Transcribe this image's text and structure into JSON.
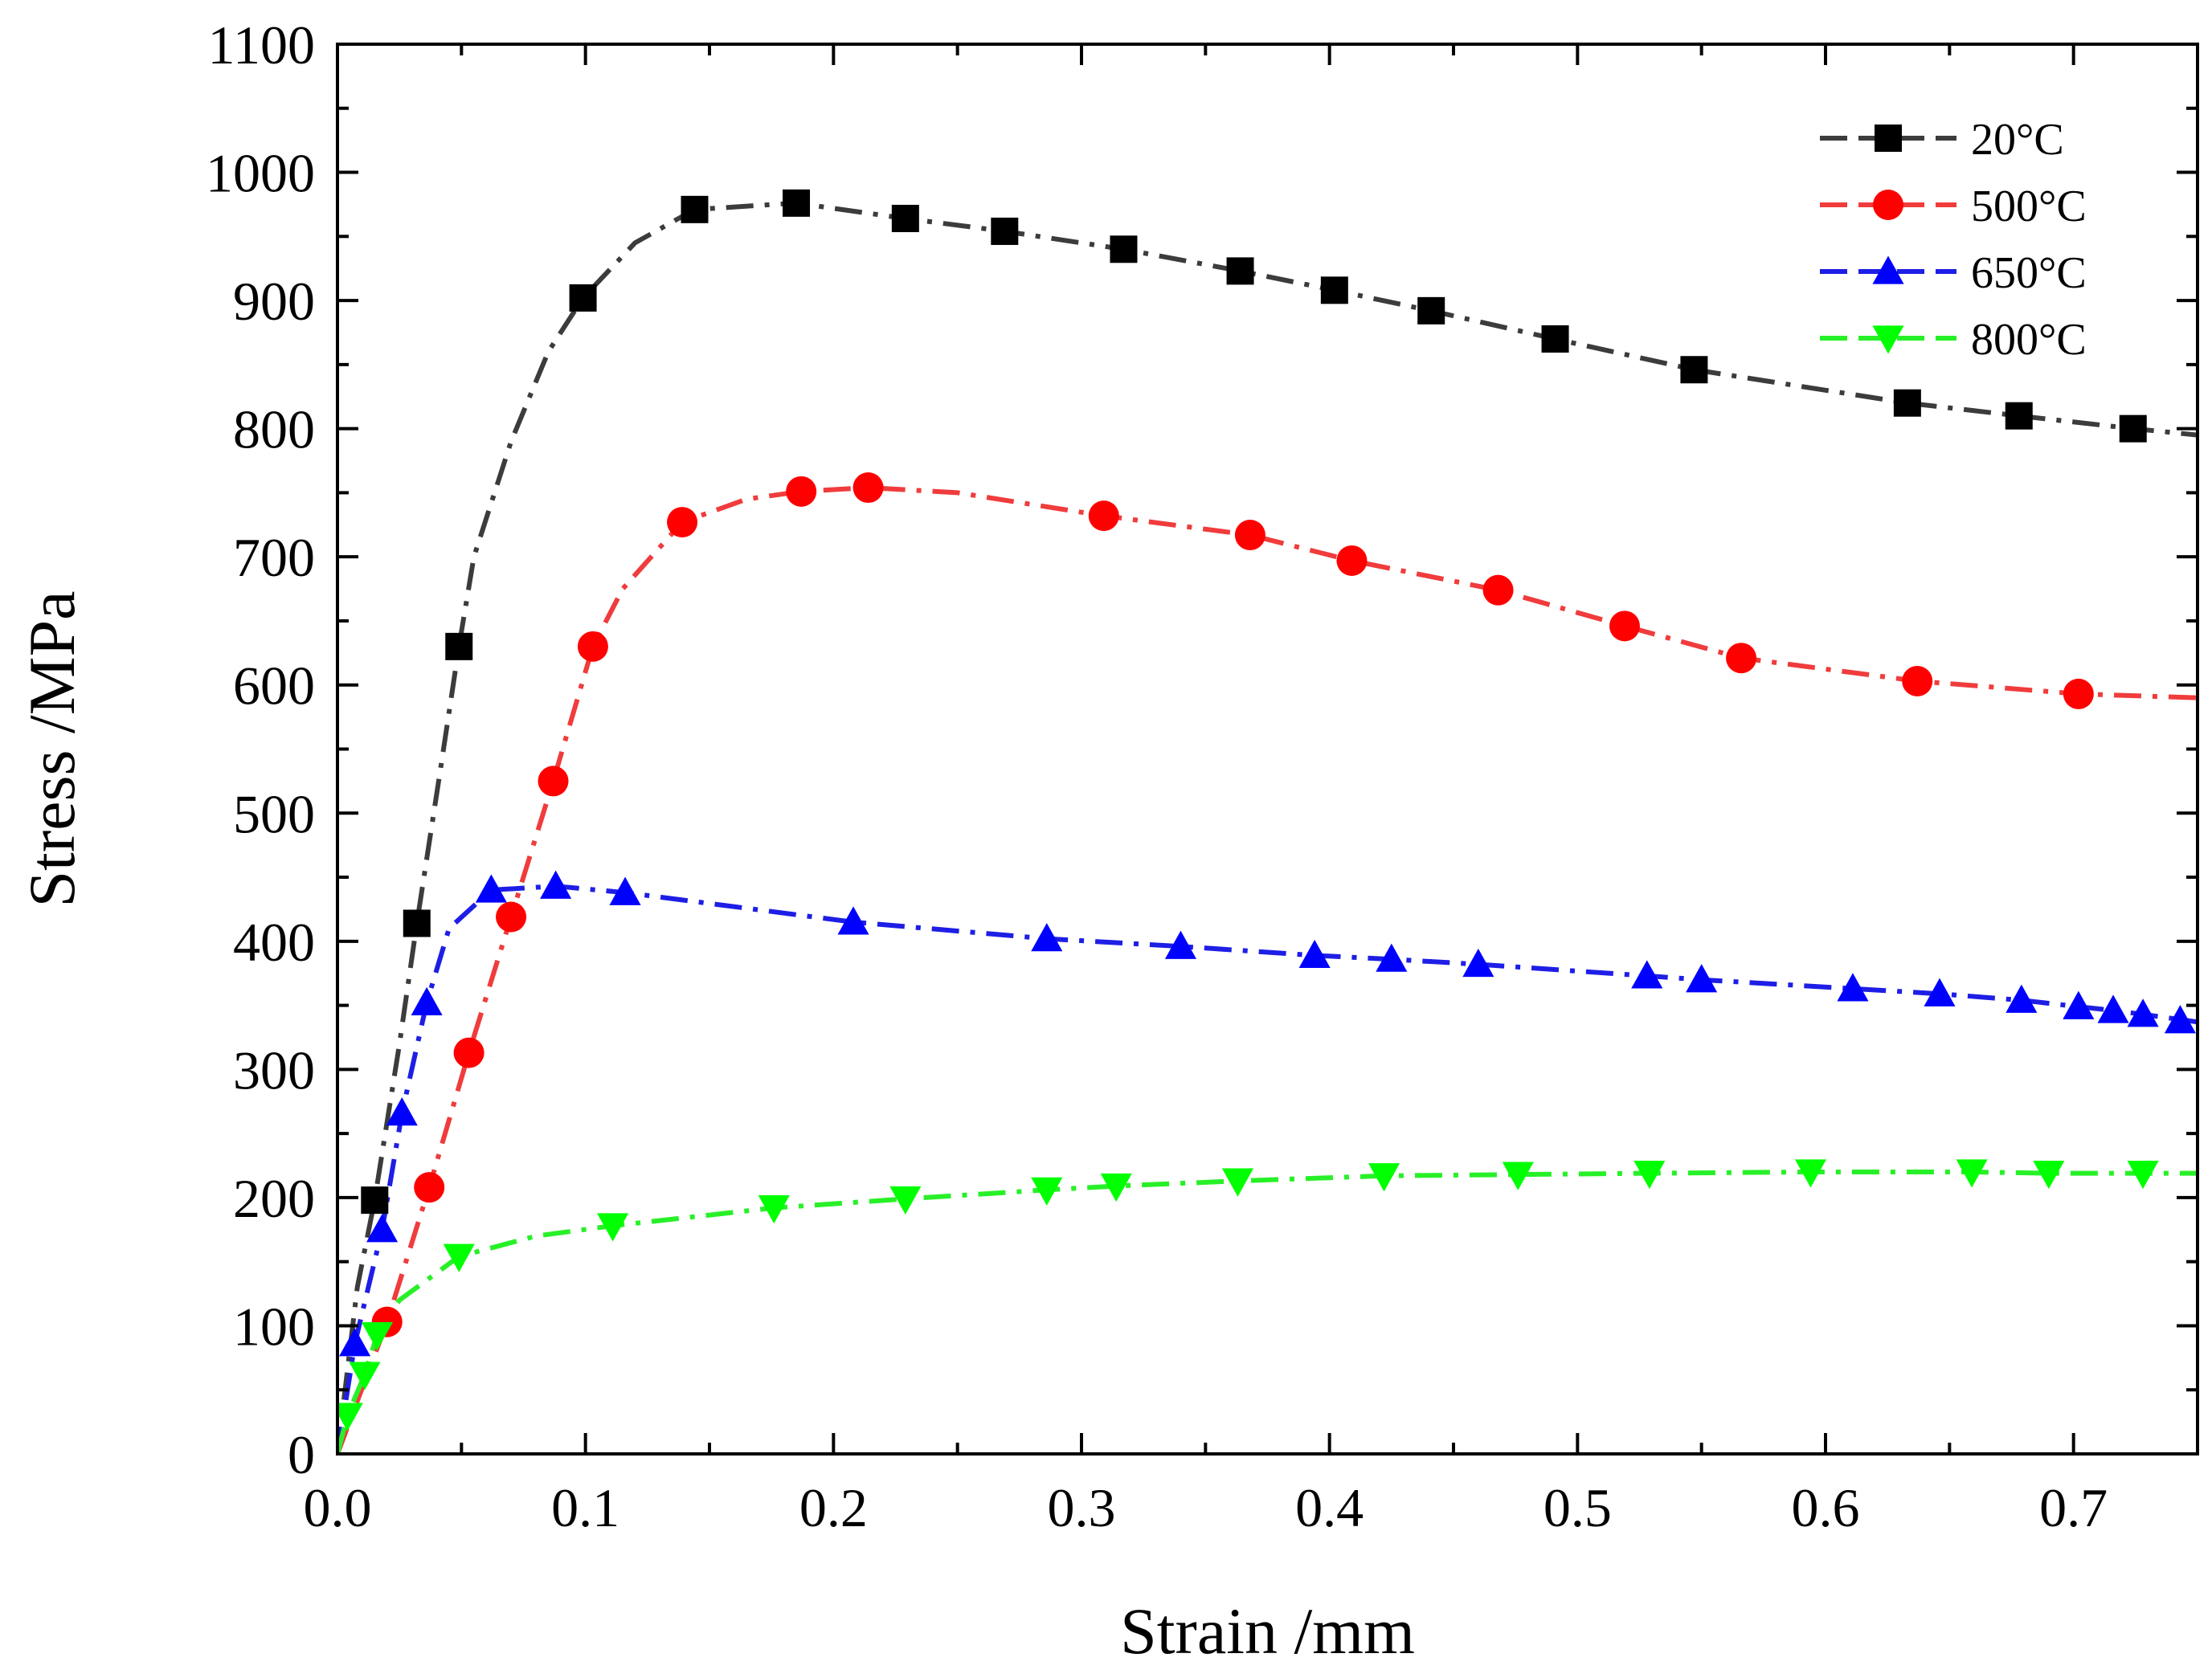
{
  "chart_data": {
    "type": "line",
    "title": "",
    "xlabel": "Strain /mm",
    "ylabel": "Stress /MPa",
    "xlim": [
      0,
      0.75
    ],
    "ylim": [
      0,
      1100
    ],
    "x_ticks": [
      0.0,
      0.1,
      0.2,
      0.3,
      0.4,
      0.5,
      0.6,
      0.7
    ],
    "x_tick_labels": [
      "0.0",
      "0.1",
      "0.2",
      "0.3",
      "0.4",
      "0.5",
      "0.6",
      "0.7"
    ],
    "y_ticks": [
      0,
      100,
      200,
      300,
      400,
      500,
      600,
      700,
      800,
      900,
      1000,
      1100
    ],
    "y_tick_labels": [
      "0",
      "100",
      "200",
      "300",
      "400",
      "500",
      "600",
      "700",
      "800",
      "900",
      "1000",
      "1100"
    ],
    "grid": false,
    "legend_position": "top-right",
    "series": [
      {
        "name": "20°C",
        "color": "#3c3c3c",
        "marker": "square",
        "points": [
          [
            0.015,
            198
          ],
          [
            0.032,
            414
          ],
          [
            0.049,
            630
          ],
          [
            0.099,
            902
          ],
          [
            0.144,
            971
          ],
          [
            0.185,
            976
          ],
          [
            0.229,
            964
          ],
          [
            0.269,
            954
          ],
          [
            0.317,
            940
          ],
          [
            0.364,
            923
          ],
          [
            0.402,
            908
          ],
          [
            0.441,
            892
          ],
          [
            0.491,
            870
          ],
          [
            0.547,
            846
          ],
          [
            0.633,
            820
          ],
          [
            0.678,
            810
          ],
          [
            0.724,
            800
          ]
        ],
        "curve": [
          [
            0.0,
            0
          ],
          [
            0.008,
            130
          ],
          [
            0.015,
            198
          ],
          [
            0.025,
            320
          ],
          [
            0.032,
            414
          ],
          [
            0.042,
            540
          ],
          [
            0.049,
            630
          ],
          [
            0.055,
            700
          ],
          [
            0.07,
            790
          ],
          [
            0.085,
            860
          ],
          [
            0.099,
            902
          ],
          [
            0.12,
            945
          ],
          [
            0.144,
            971
          ],
          [
            0.185,
            976
          ],
          [
            0.229,
            964
          ],
          [
            0.269,
            954
          ],
          [
            0.317,
            940
          ],
          [
            0.364,
            923
          ],
          [
            0.402,
            908
          ],
          [
            0.441,
            892
          ],
          [
            0.491,
            870
          ],
          [
            0.547,
            846
          ],
          [
            0.6,
            830
          ],
          [
            0.633,
            820
          ],
          [
            0.678,
            810
          ],
          [
            0.724,
            800
          ],
          [
            0.75,
            795
          ]
        ]
      },
      {
        "name": "500°C",
        "color": "#f03c3c",
        "marker": "circle",
        "points": [
          [
            0.02,
            103
          ],
          [
            0.037,
            208
          ],
          [
            0.053,
            313
          ],
          [
            0.07,
            419
          ],
          [
            0.087,
            525
          ],
          [
            0.103,
            630
          ],
          [
            0.139,
            727
          ],
          [
            0.187,
            751
          ],
          [
            0.214,
            754
          ],
          [
            0.309,
            732
          ],
          [
            0.368,
            717
          ],
          [
            0.409,
            697
          ],
          [
            0.468,
            674
          ],
          [
            0.519,
            646
          ],
          [
            0.566,
            621
          ],
          [
            0.637,
            603
          ],
          [
            0.702,
            593
          ]
        ],
        "curve": [
          [
            0.0,
            0
          ],
          [
            0.02,
            103
          ],
          [
            0.037,
            208
          ],
          [
            0.053,
            313
          ],
          [
            0.07,
            419
          ],
          [
            0.087,
            525
          ],
          [
            0.103,
            630
          ],
          [
            0.115,
            675
          ],
          [
            0.139,
            727
          ],
          [
            0.165,
            745
          ],
          [
            0.187,
            751
          ],
          [
            0.214,
            754
          ],
          [
            0.25,
            750
          ],
          [
            0.309,
            732
          ],
          [
            0.368,
            717
          ],
          [
            0.409,
            697
          ],
          [
            0.468,
            674
          ],
          [
            0.519,
            646
          ],
          [
            0.566,
            621
          ],
          [
            0.637,
            603
          ],
          [
            0.702,
            593
          ],
          [
            0.75,
            590
          ]
        ]
      },
      {
        "name": "650°C",
        "color": "#1e1ee6",
        "marker": "triangle-up",
        "points": [
          [
            0.007,
            86
          ],
          [
            0.018,
            175
          ],
          [
            0.026,
            266
          ],
          [
            0.036,
            352
          ],
          [
            0.062,
            440
          ],
          [
            0.088,
            443
          ],
          [
            0.116,
            438
          ],
          [
            0.208,
            415
          ],
          [
            0.286,
            402
          ],
          [
            0.34,
            396
          ],
          [
            0.394,
            389
          ],
          [
            0.425,
            386
          ],
          [
            0.46,
            382
          ],
          [
            0.528,
            373
          ],
          [
            0.55,
            370
          ],
          [
            0.611,
            363
          ],
          [
            0.646,
            359
          ],
          [
            0.679,
            354
          ],
          [
            0.702,
            349
          ],
          [
            0.716,
            346
          ],
          [
            0.728,
            343
          ],
          [
            0.743,
            338
          ]
        ],
        "curve": [
          [
            0.0,
            0
          ],
          [
            0.007,
            86
          ],
          [
            0.018,
            175
          ],
          [
            0.026,
            266
          ],
          [
            0.036,
            352
          ],
          [
            0.045,
            410
          ],
          [
            0.062,
            440
          ],
          [
            0.088,
            443
          ],
          [
            0.116,
            438
          ],
          [
            0.208,
            415
          ],
          [
            0.286,
            402
          ],
          [
            0.34,
            396
          ],
          [
            0.394,
            389
          ],
          [
            0.425,
            386
          ],
          [
            0.46,
            382
          ],
          [
            0.528,
            373
          ],
          [
            0.55,
            370
          ],
          [
            0.611,
            363
          ],
          [
            0.646,
            359
          ],
          [
            0.679,
            354
          ],
          [
            0.702,
            349
          ],
          [
            0.716,
            346
          ],
          [
            0.728,
            343
          ],
          [
            0.75,
            337
          ]
        ]
      },
      {
        "name": "800°C",
        "color": "#28f028",
        "marker": "triangle-down",
        "points": [
          [
            0.004,
            30
          ],
          [
            0.011,
            62
          ],
          [
            0.016,
            93
          ],
          [
            0.049,
            154
          ],
          [
            0.111,
            178
          ],
          [
            0.176,
            192
          ],
          [
            0.229,
            199
          ],
          [
            0.286,
            206
          ],
          [
            0.314,
            209
          ],
          [
            0.363,
            213
          ],
          [
            0.422,
            217
          ],
          [
            0.476,
            218
          ],
          [
            0.529,
            219
          ],
          [
            0.594,
            220
          ],
          [
            0.659,
            220
          ],
          [
            0.69,
            219
          ],
          [
            0.728,
            219
          ]
        ],
        "curve": [
          [
            0.0,
            0
          ],
          [
            0.004,
            30
          ],
          [
            0.011,
            62
          ],
          [
            0.016,
            93
          ],
          [
            0.025,
            120
          ],
          [
            0.049,
            154
          ],
          [
            0.08,
            170
          ],
          [
            0.111,
            178
          ],
          [
            0.176,
            192
          ],
          [
            0.229,
            199
          ],
          [
            0.286,
            206
          ],
          [
            0.314,
            209
          ],
          [
            0.363,
            213
          ],
          [
            0.422,
            217
          ],
          [
            0.476,
            218
          ],
          [
            0.529,
            219
          ],
          [
            0.594,
            220
          ],
          [
            0.659,
            220
          ],
          [
            0.69,
            219
          ],
          [
            0.728,
            219
          ],
          [
            0.75,
            219
          ]
        ]
      }
    ]
  }
}
